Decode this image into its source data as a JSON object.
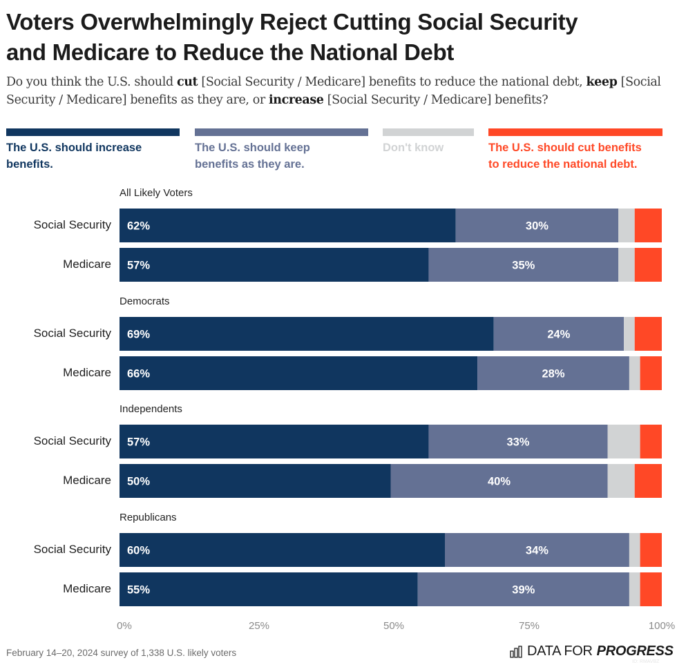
{
  "header": {
    "title_line1": "Voters Overwhelmingly Reject Cutting Social Security",
    "title_line2": "and Medicare to Reduce the National Debt",
    "subtitle_parts": [
      {
        "text": "Do you think the U.S. should ",
        "bold": false
      },
      {
        "text": "cut",
        "bold": true
      },
      {
        "text": " [Social Security / Medicare] benefits to reduce the national debt, ",
        "bold": false
      },
      {
        "text": "keep",
        "bold": true
      },
      {
        "text": " [Social Security / Medicare] benefits as they are, or ",
        "bold": false
      },
      {
        "text": "increase",
        "bold": true
      },
      {
        "text": " [Social Security / Medicare] benefits?",
        "bold": false
      }
    ]
  },
  "legend": [
    {
      "key": "increase",
      "label_line1": "The U.S. should increase",
      "label_line2": "benefits.",
      "color": "#10365f"
    },
    {
      "key": "keep",
      "label_line1": "The U.S. should keep",
      "label_line2": "benefits as they are.",
      "color": "#647194"
    },
    {
      "key": "dont_know",
      "label_line1": "Don't know",
      "label_line2": "",
      "color": "#d1d3d4"
    },
    {
      "key": "cut",
      "label_line1": "The U.S. should cut benefits",
      "label_line2": "to reduce the national debt.",
      "color": "#ff4826"
    }
  ],
  "chart_data": {
    "type": "bar",
    "orientation": "horizontal",
    "stacked": true,
    "title": "Voters Overwhelmingly Reject Cutting Social Security and Medicare to Reduce the National Debt",
    "xlabel": "",
    "ylabel": "",
    "xlim": [
      0,
      100
    ],
    "x_ticks": [
      "0%",
      "25%",
      "50%",
      "75%",
      "100%"
    ],
    "grid": false,
    "legend_position": "top",
    "series_names": [
      "The U.S. should increase benefits.",
      "The U.S. should keep benefits as they are.",
      "Don't know",
      "The U.S. should cut benefits to reduce the national debt."
    ],
    "groups": [
      {
        "name": "All Likely Voters",
        "rows": [
          {
            "label": "Social Security",
            "values": [
              62,
              30,
              3,
              5
            ],
            "labels": [
              "62%",
              "30%",
              "",
              ""
            ]
          },
          {
            "label": "Medicare",
            "values": [
              57,
              35,
              3,
              5
            ],
            "labels": [
              "57%",
              "35%",
              "",
              ""
            ]
          }
        ]
      },
      {
        "name": "Democrats",
        "rows": [
          {
            "label": "Social Security",
            "values": [
              69,
              24,
              2,
              5
            ],
            "labels": [
              "69%",
              "24%",
              "",
              ""
            ]
          },
          {
            "label": "Medicare",
            "values": [
              66,
              28,
              2,
              4
            ],
            "labels": [
              "66%",
              "28%",
              "",
              ""
            ]
          }
        ]
      },
      {
        "name": "Independents",
        "rows": [
          {
            "label": "Social Security",
            "values": [
              57,
              33,
              6,
              4
            ],
            "labels": [
              "57%",
              "33%",
              "",
              ""
            ]
          },
          {
            "label": "Medicare",
            "values": [
              50,
              40,
              5,
              5
            ],
            "labels": [
              "50%",
              "40%",
              "",
              ""
            ]
          }
        ]
      },
      {
        "name": "Republicans",
        "rows": [
          {
            "label": "Social Security",
            "values": [
              60,
              34,
              2,
              4
            ],
            "labels": [
              "60%",
              "34%",
              "",
              ""
            ]
          },
          {
            "label": "Medicare",
            "values": [
              55,
              39,
              2,
              4
            ],
            "labels": [
              "55%",
              "39%",
              "",
              ""
            ]
          }
        ]
      }
    ]
  },
  "footer": {
    "note": "February 14–20, 2024 survey of 1,338 U.S. likely voters",
    "brand_light": "DATA FOR",
    "brand_bold": "PROGRESS",
    "brand_id": "ID: RMAVBZ"
  }
}
